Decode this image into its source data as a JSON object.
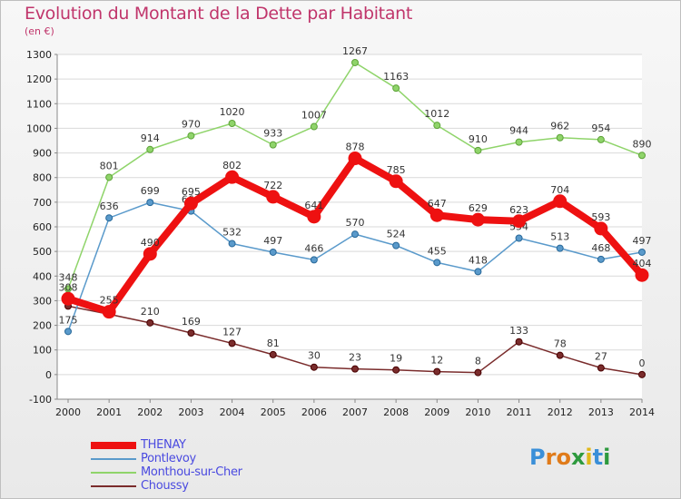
{
  "header": {
    "title": "Evolution du Montant de la Dette par Habitant",
    "unit": "(en €)"
  },
  "logo": {
    "text": "Proxiti",
    "letters": [
      "P",
      "r",
      "o",
      "x",
      "i",
      "t",
      "i"
    ],
    "colors": [
      "#3a8fd8",
      "#e07b1a",
      "#e07b1a",
      "#2e9a3e",
      "#e0b81a",
      "#3a8fd8",
      "#2e9a3e"
    ]
  },
  "chart_data": {
    "type": "line",
    "x": [
      2000,
      2001,
      2002,
      2003,
      2004,
      2005,
      2006,
      2007,
      2008,
      2009,
      2010,
      2011,
      2012,
      2013,
      2014
    ],
    "ylim": [
      -100,
      1300
    ],
    "yticks": [
      -100,
      0,
      100,
      200,
      300,
      400,
      500,
      600,
      700,
      800,
      900,
      1000,
      1100,
      1200,
      1300
    ],
    "grid": "horizontal",
    "legend_position": "bottom-left",
    "series": [
      {
        "name": "Choussy",
        "color": "#7a2c2c",
        "width": 1.5,
        "marker": 3.5,
        "values": [
          278,
          245,
          210,
          169,
          127,
          81,
          30,
          23,
          19,
          12,
          8,
          133,
          78,
          27,
          0
        ],
        "labels": [
          "",
          "",
          "210",
          "169",
          "127",
          "81",
          "30",
          "23",
          "19",
          "12",
          "8",
          "133",
          "78",
          "27",
          "0"
        ]
      },
      {
        "name": "Monthou-sur-Cher",
        "color": "#8fd46a",
        "width": 1.5,
        "marker": 3.5,
        "values": [
          348,
          801,
          914,
          970,
          1020,
          933,
          1007,
          1267,
          1163,
          1012,
          910,
          944,
          962,
          954,
          890
        ],
        "labels": [
          "348",
          "801",
          "914",
          "970",
          "1020",
          "933",
          "1007",
          "1267",
          "1163",
          "1012",
          "910",
          "944",
          "962",
          "954",
          "890"
        ]
      },
      {
        "name": "Pontlevoy",
        "color": "#5a9acb",
        "width": 1.5,
        "marker": 3.5,
        "values": [
          175,
          636,
          699,
          664,
          532,
          497,
          466,
          570,
          524,
          455,
          418,
          554,
          513,
          468,
          497
        ],
        "labels": [
          "175",
          "636",
          "699",
          "664",
          "532",
          "497",
          "466",
          "570",
          "524",
          "455",
          "418",
          "554",
          "513",
          "468",
          "497"
        ]
      },
      {
        "name": "THENAY",
        "color": "#ee1111",
        "width": 8,
        "marker": 7,
        "values": [
          308,
          255,
          490,
          695,
          802,
          722,
          641,
          878,
          785,
          647,
          629,
          623,
          704,
          593,
          404
        ],
        "labels": [
          "308",
          "255",
          "490",
          "695",
          "802",
          "722",
          "641",
          "878",
          "785",
          "647",
          "629",
          "623",
          "704",
          "593",
          "404"
        ]
      }
    ]
  },
  "legend": {
    "items": [
      {
        "name": "THENAY",
        "color": "#ee1111",
        "thickness": 8
      },
      {
        "name": "Pontlevoy",
        "color": "#5a9acb",
        "thickness": 2
      },
      {
        "name": "Monthou-sur-Cher",
        "color": "#8fd46a",
        "thickness": 2
      },
      {
        "name": "Choussy",
        "color": "#7a2c2c",
        "thickness": 2
      }
    ]
  }
}
